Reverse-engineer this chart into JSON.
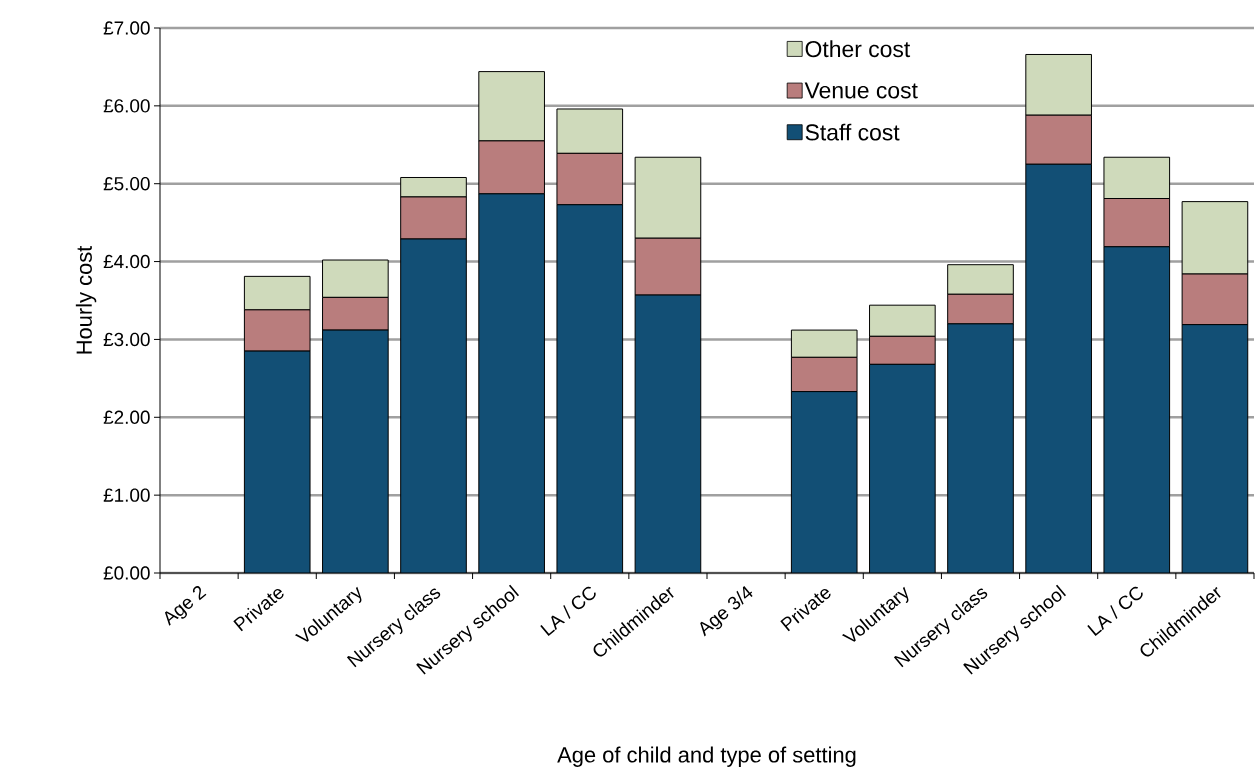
{
  "chart_data": {
    "type": "bar",
    "stacked": true,
    "xlabel": "Age of child and type of setting",
    "ylabel": "Hourly cost",
    "categories": [
      "Age 2",
      "Private",
      "Voluntary",
      "Nursery class",
      "Nursery school",
      "LA / CC",
      "Childminder",
      "Age 3/4",
      "Private",
      "Voluntary",
      "Nursery class",
      "Nursery school",
      "LA / CC",
      "Childminder"
    ],
    "series": [
      {
        "name": "Staff cost",
        "color": "#124f75",
        "values": [
          null,
          2.85,
          3.12,
          4.29,
          4.87,
          4.73,
          3.57,
          null,
          2.33,
          2.68,
          3.2,
          5.25,
          4.19,
          3.19
        ]
      },
      {
        "name": "Venue cost",
        "color": "#b97d7d",
        "values": [
          null,
          0.53,
          0.42,
          0.54,
          0.68,
          0.66,
          0.73,
          null,
          0.44,
          0.36,
          0.38,
          0.63,
          0.62,
          0.65
        ]
      },
      {
        "name": "Other cost",
        "color": "#cfdabb",
        "values": [
          null,
          0.43,
          0.48,
          0.25,
          0.89,
          0.57,
          1.04,
          null,
          0.35,
          0.4,
          0.38,
          0.78,
          0.53,
          0.93
        ]
      }
    ],
    "ylim": [
      0,
      7
    ],
    "yticks": [
      {
        "value": 0,
        "label": "£0.00"
      },
      {
        "value": 1,
        "label": "£1.00"
      },
      {
        "value": 2,
        "label": "£2.00"
      },
      {
        "value": 3,
        "label": "£3.00"
      },
      {
        "value": 4,
        "label": "£4.00"
      },
      {
        "value": 5,
        "label": "£5.00"
      },
      {
        "value": 6,
        "label": "£6.00"
      },
      {
        "value": 7,
        "label": "£7.00"
      }
    ],
    "grid": "y",
    "legend": "top right"
  }
}
